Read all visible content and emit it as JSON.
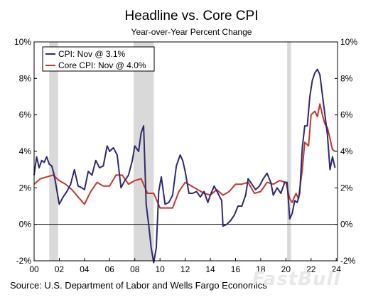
{
  "watermark": "FastBull",
  "source_note": "Source: U.S. Department of Labor and Wells Fargo Economics",
  "colors": {
    "cpi": "#2e2a6e",
    "core": "#c0392b",
    "recession": "#d9d9d9",
    "axis": "#000000"
  },
  "chart_data": {
    "type": "line",
    "title": "Headline vs. Core CPI",
    "subtitle": "Year-over-Year Percent Change",
    "xlim": [
      2000,
      2024.1
    ],
    "ylim": [
      -2,
      10
    ],
    "x_ticks": [
      2000,
      2002,
      2004,
      2006,
      2008,
      2010,
      2012,
      2014,
      2016,
      2018,
      2020,
      2022,
      2024
    ],
    "x_tick_labels": [
      "00",
      "02",
      "04",
      "06",
      "08",
      "10",
      "12",
      "14",
      "16",
      "18",
      "20",
      "22",
      "24"
    ],
    "y_ticks": [
      -2,
      0,
      2,
      4,
      6,
      8,
      10
    ],
    "y_tick_labels_left": [
      "-2%",
      "0%",
      "2%",
      "4%",
      "6%",
      "8%",
      "10%"
    ],
    "y_tick_labels_right": [
      "-2%",
      "0%",
      "2%",
      "4%",
      "6%",
      "8%",
      "10%"
    ],
    "grid": false,
    "legend": "top-left",
    "recessions": [
      [
        2001.2,
        2001.9
      ],
      [
        2007.9,
        2009.5
      ],
      [
        2020.1,
        2020.4
      ]
    ],
    "series": [
      {
        "name": "CPI: Nov @ 3.1%",
        "x": [
          2000.0,
          2000.2,
          2000.4,
          2000.6,
          2000.8,
          2001.0,
          2001.2,
          2001.4,
          2001.6,
          2001.8,
          2002.0,
          2002.3,
          2002.6,
          2002.9,
          2003.2,
          2003.5,
          2003.8,
          2004.0,
          2004.3,
          2004.6,
          2004.9,
          2005.2,
          2005.5,
          2005.8,
          2006.0,
          2006.3,
          2006.6,
          2006.9,
          2007.2,
          2007.5,
          2007.8,
          2008.0,
          2008.3,
          2008.5,
          2008.7,
          2008.9,
          2009.1,
          2009.3,
          2009.5,
          2009.7,
          2009.9,
          2010.1,
          2010.4,
          2010.7,
          2011.0,
          2011.3,
          2011.6,
          2011.8,
          2012.0,
          2012.3,
          2012.6,
          2012.9,
          2013.2,
          2013.5,
          2013.8,
          2014.0,
          2014.3,
          2014.6,
          2014.9,
          2015.0,
          2015.3,
          2015.6,
          2015.9,
          2016.2,
          2016.5,
          2016.8,
          2017.0,
          2017.3,
          2017.6,
          2017.9,
          2018.2,
          2018.5,
          2018.8,
          2019.0,
          2019.3,
          2019.6,
          2019.9,
          2020.1,
          2020.3,
          2020.5,
          2020.7,
          2020.9,
          2021.1,
          2021.3,
          2021.5,
          2021.7,
          2021.9,
          2022.1,
          2022.3,
          2022.5,
          2022.7,
          2022.9,
          2023.1,
          2023.3,
          2023.5,
          2023.7,
          2023.9
        ],
        "values": [
          2.7,
          3.7,
          3.1,
          3.5,
          3.4,
          3.7,
          3.3,
          3.2,
          2.7,
          1.9,
          1.1,
          1.5,
          1.8,
          2.2,
          3.0,
          2.1,
          2.0,
          1.9,
          2.9,
          2.7,
          3.5,
          3.1,
          3.2,
          4.3,
          4.0,
          4.2,
          3.8,
          2.0,
          2.4,
          2.7,
          3.5,
          4.3,
          4.0,
          5.0,
          5.4,
          1.1,
          0.0,
          -1.3,
          -2.1,
          -1.3,
          1.8,
          2.6,
          1.1,
          1.2,
          1.6,
          3.2,
          3.8,
          3.5,
          2.9,
          1.7,
          1.7,
          1.8,
          1.5,
          1.8,
          1.2,
          1.6,
          2.1,
          1.7,
          1.3,
          -0.1,
          0.0,
          0.2,
          0.5,
          1.0,
          1.0,
          1.6,
          2.5,
          2.2,
          1.9,
          2.1,
          2.5,
          2.8,
          2.3,
          1.6,
          2.0,
          1.7,
          2.3,
          2.3,
          0.3,
          0.6,
          1.3,
          1.2,
          1.7,
          4.2,
          5.4,
          5.4,
          7.0,
          7.9,
          8.3,
          8.5,
          8.2,
          7.1,
          6.0,
          4.9,
          3.0,
          3.7,
          3.1
        ]
      },
      {
        "name": "Core CPI: Nov @ 4.0%",
        "x": [
          2000.0,
          2000.5,
          2001.0,
          2001.5,
          2002.0,
          2002.5,
          2003.0,
          2003.5,
          2004.0,
          2004.5,
          2005.0,
          2005.5,
          2006.0,
          2006.5,
          2007.0,
          2007.5,
          2008.0,
          2008.5,
          2009.0,
          2009.5,
          2010.0,
          2010.5,
          2011.0,
          2011.5,
          2012.0,
          2012.5,
          2013.0,
          2013.5,
          2014.0,
          2014.5,
          2015.0,
          2015.5,
          2016.0,
          2016.5,
          2017.0,
          2017.5,
          2018.0,
          2018.5,
          2019.0,
          2019.5,
          2020.0,
          2020.3,
          2020.5,
          2020.8,
          2021.0,
          2021.3,
          2021.5,
          2021.8,
          2022.0,
          2022.3,
          2022.5,
          2022.7,
          2022.9,
          2023.1,
          2023.3,
          2023.5,
          2023.7,
          2023.9
        ],
        "values": [
          2.2,
          2.5,
          2.6,
          2.7,
          2.4,
          2.2,
          1.9,
          1.5,
          1.1,
          1.8,
          2.3,
          2.1,
          2.1,
          2.7,
          2.7,
          2.2,
          2.4,
          2.5,
          1.7,
          1.7,
          0.9,
          0.9,
          0.9,
          1.8,
          2.3,
          2.1,
          1.9,
          1.7,
          1.6,
          1.9,
          1.6,
          1.8,
          2.2,
          2.2,
          2.3,
          1.7,
          1.8,
          2.3,
          2.2,
          2.4,
          2.3,
          1.4,
          1.2,
          1.7,
          1.4,
          3.0,
          4.5,
          4.3,
          6.0,
          6.2,
          5.9,
          6.6,
          6.0,
          5.5,
          5.3,
          4.7,
          4.1,
          4.0
        ]
      }
    ]
  }
}
